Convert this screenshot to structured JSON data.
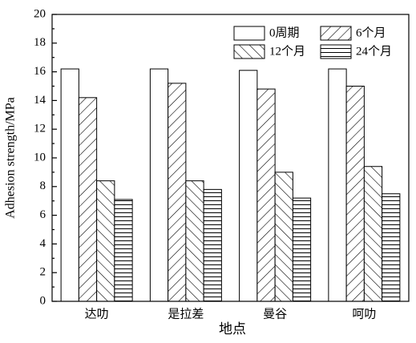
{
  "chart_data": {
    "type": "bar",
    "x_label": "地点",
    "y_label": "Adhesion strength/MPa",
    "categories": [
      "达叻",
      "是拉差",
      "曼谷",
      "呵叻"
    ],
    "series": [
      {
        "name": "0周期",
        "color": "#000000",
        "hatch": "none",
        "values": [
          16.2,
          16.2,
          16.1,
          16.2
        ]
      },
      {
        "name": "6个月",
        "color": "#000000",
        "hatch": "/",
        "values": [
          14.2,
          15.2,
          14.8,
          15.0
        ]
      },
      {
        "name": "12个月",
        "color": "#000000",
        "hatch": "\\",
        "values": [
          8.4,
          8.4,
          9.0,
          9.4
        ]
      },
      {
        "name": "24个月",
        "color": "#000000",
        "hatch": "-",
        "values": [
          7.1,
          7.8,
          7.2,
          7.5
        ]
      }
    ],
    "ylim": [
      0,
      20
    ],
    "yticks": [
      0,
      2,
      4,
      6,
      8,
      10,
      12,
      14,
      16,
      18,
      20
    ],
    "legend": "upper right"
  }
}
